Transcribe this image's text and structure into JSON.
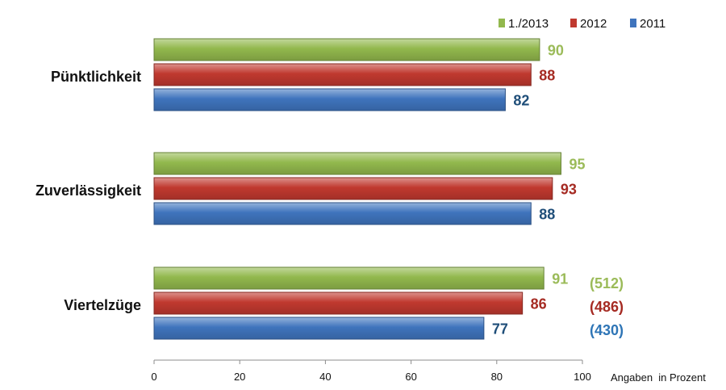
{
  "chart_data": {
    "type": "bar",
    "orientation": "horizontal",
    "categories": [
      "Pünktlichkeit",
      "Zuverlässigkeit",
      "Viertelzüge"
    ],
    "series": [
      {
        "name": "1./2013",
        "values": [
          90,
          95,
          91
        ],
        "color": "#92b84d",
        "label_color": "#9bbb59"
      },
      {
        "name": "2012",
        "values": [
          88,
          93,
          86
        ],
        "color": "#c0392f",
        "label_color": "#a52a22"
      },
      {
        "name": "2011",
        "values": [
          82,
          88,
          77
        ],
        "color": "#3f74bd",
        "label_color": "#1f4e79"
      }
    ],
    "sample_sizes": {
      "category": "Viertelzüge",
      "labels": [
        "(512)",
        "(486)",
        "(430)"
      ],
      "colors": [
        "#9bbb59",
        "#a52a22",
        "#2e75b6"
      ]
    },
    "x_ticks": [
      "0",
      "20",
      "40",
      "60",
      "80",
      "100"
    ],
    "xlim": [
      0,
      100
    ],
    "xlabel": "Angaben  in Prozent",
    "ylabel": "",
    "title": "",
    "legend_position": "top-right",
    "grid": false
  }
}
